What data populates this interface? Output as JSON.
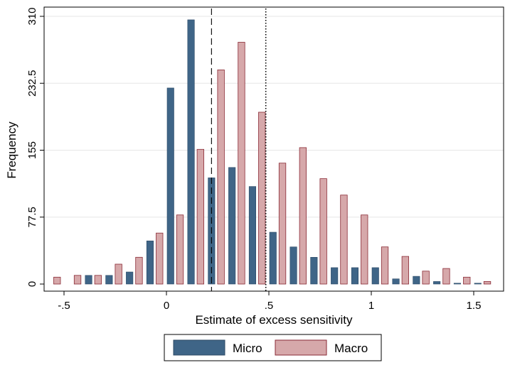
{
  "chart_data": {
    "type": "bar",
    "xlabel": "Estimate of excess sensitivity",
    "ylabel": "Frequency",
    "xlim": [
      -0.55,
      1.6
    ],
    "ylim": [
      0,
      310
    ],
    "xticks": [
      -0.5,
      0,
      0.5,
      1,
      1.5
    ],
    "xtick_labels": [
      "-.5",
      "0",
      ".5",
      "1",
      "1.5"
    ],
    "yticks": [
      0,
      77.5,
      155,
      232.5,
      310
    ],
    "ytick_labels": [
      "0",
      "77.5",
      "155",
      "232.5",
      "310"
    ],
    "grid": true,
    "legend_position": "bottom",
    "bin_centers": [
      -0.5,
      -0.4,
      -0.3,
      -0.2,
      -0.1,
      0.0,
      0.1,
      0.2,
      0.3,
      0.4,
      0.5,
      0.6,
      0.7,
      0.8,
      0.9,
      1.0,
      1.1,
      1.2,
      1.3,
      1.4,
      1.5
    ],
    "series": [
      {
        "name": "Micro",
        "color": "#3f6587",
        "values": [
          0,
          10,
          10,
          14,
          50,
          227,
          306,
          123,
          135,
          113,
          60,
          43,
          31,
          19,
          19,
          19,
          6,
          9,
          3,
          1,
          1
        ]
      },
      {
        "name": "Macro",
        "color": "#d6a8aa",
        "values": [
          8,
          10,
          10,
          23,
          31,
          59,
          80,
          156,
          248,
          280,
          199,
          140,
          158,
          122,
          103,
          80,
          43,
          32,
          15,
          18,
          8
        ]
      }
    ],
    "extra_bins": [
      {
        "x": 1.6,
        "micro": 0,
        "macro": 3
      }
    ],
    "reference_lines": [
      {
        "x": 0.22,
        "style": "dashed"
      },
      {
        "x": 0.485,
        "style": "dotted"
      }
    ]
  }
}
